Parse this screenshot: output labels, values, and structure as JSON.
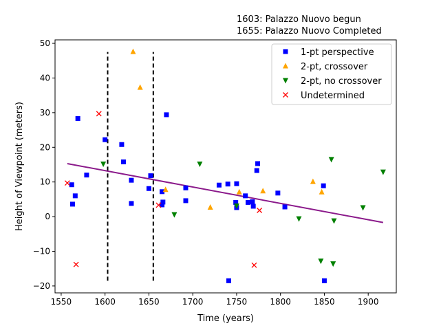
{
  "annotations": [
    "1603: Palazzo Nuovo begun",
    "1655: Palazzo Nuovo Completed"
  ],
  "chart_data": {
    "type": "scatter",
    "xlabel": "Time (years)",
    "ylabel": "Height of Viewpoint (meters)",
    "xlim": [
      1543,
      1932
    ],
    "ylim": [
      -22,
      51
    ],
    "xticks": [
      1550,
      1600,
      1650,
      1700,
      1750,
      1800,
      1850,
      1900
    ],
    "yticks": [
      -20,
      -10,
      0,
      10,
      20,
      30,
      40,
      50
    ],
    "xtick_labels": [
      "1550",
      "1600",
      "1650",
      "1700",
      "1750",
      "1800",
      "1850",
      "1900"
    ],
    "ytick_labels": [
      "−20",
      "−10",
      "0",
      "10",
      "20",
      "30",
      "40",
      "50"
    ],
    "grid": false,
    "legend_position": "top-right",
    "series": [
      {
        "name": "1-pt perspective",
        "marker": "square",
        "color": "#0000ff",
        "points": [
          [
            1562,
            9.2
          ],
          [
            1563,
            3.6
          ],
          [
            1566,
            6.0
          ],
          [
            1569,
            28.3
          ],
          [
            1579,
            12.0
          ],
          [
            1600,
            22.2
          ],
          [
            1619,
            20.8
          ],
          [
            1621,
            15.8
          ],
          [
            1630,
            10.5
          ],
          [
            1630,
            3.8
          ],
          [
            1650,
            8.1
          ],
          [
            1652,
            11.8
          ],
          [
            1665,
            7.2
          ],
          [
            1665,
            3.4
          ],
          [
            1666,
            4.2
          ],
          [
            1670,
            29.4
          ],
          [
            1692,
            8.3
          ],
          [
            1692,
            4.6
          ],
          [
            1730,
            9.1
          ],
          [
            1740,
            9.4
          ],
          [
            1741,
            -18.5
          ],
          [
            1749,
            4.1
          ],
          [
            1750,
            9.5
          ],
          [
            1750,
            2.6
          ],
          [
            1760,
            6.0
          ],
          [
            1763,
            4.1
          ],
          [
            1768,
            4.3
          ],
          [
            1769,
            3.0
          ],
          [
            1773,
            13.3
          ],
          [
            1774,
            15.3
          ],
          [
            1797,
            6.8
          ],
          [
            1805,
            2.8
          ],
          [
            1849,
            8.9
          ],
          [
            1850,
            -18.5
          ]
        ]
      },
      {
        "name": "2-pt, crossover",
        "marker": "triangle-up",
        "color": "#ffa500",
        "points": [
          [
            1632,
            47.6
          ],
          [
            1640,
            37.3
          ],
          [
            1669,
            7.8
          ],
          [
            1720,
            2.7
          ],
          [
            1753,
            7.1
          ],
          [
            1780,
            7.4
          ],
          [
            1837,
            10.1
          ],
          [
            1847,
            7.1
          ]
        ]
      },
      {
        "name": "2-pt, no crossover",
        "marker": "triangle-down",
        "color": "#008000",
        "points": [
          [
            1598,
            15.2
          ],
          [
            1679,
            0.6
          ],
          [
            1708,
            15.2
          ],
          [
            1750,
            3.1
          ],
          [
            1821,
            -0.6
          ],
          [
            1846,
            -12.8
          ],
          [
            1858,
            16.5
          ],
          [
            1860,
            -13.6
          ],
          [
            1861,
            -1.2
          ],
          [
            1894,
            2.6
          ],
          [
            1917,
            12.9
          ]
        ]
      },
      {
        "name": "Undetermined",
        "marker": "x",
        "color": "#ff0000",
        "points": [
          [
            1557,
            9.7
          ],
          [
            1567,
            -13.8
          ],
          [
            1593,
            29.7
          ],
          [
            1661,
            3.3
          ],
          [
            1770,
            -14.0
          ],
          [
            1776,
            1.8
          ]
        ]
      }
    ],
    "trend_line": {
      "color": "#8b1a8b",
      "x": [
        1557,
        1917
      ],
      "y": [
        15.3,
        -1.7
      ]
    },
    "vertical_lines": [
      {
        "x": 1603,
        "y": [
          -18.5,
          47.5
        ],
        "style": "dashed",
        "color": "#000000"
      },
      {
        "x": 1655,
        "y": [
          -18.5,
          47.5
        ],
        "style": "dashed",
        "color": "#000000"
      }
    ]
  }
}
